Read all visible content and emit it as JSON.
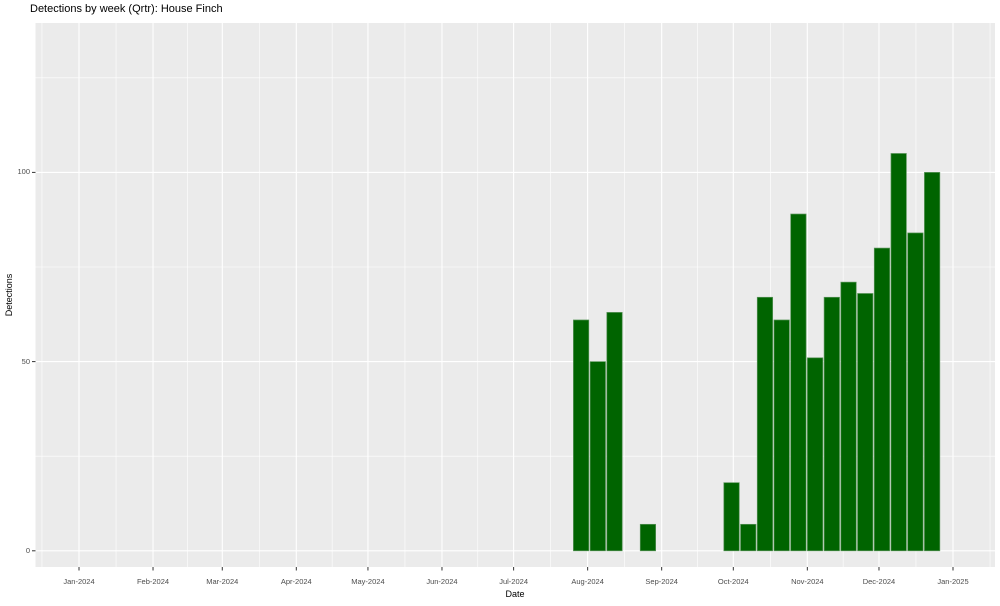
{
  "chart": {
    "title": "Detections by week (Qrtr): House Finch",
    "xlabel": "Date",
    "ylabel": "Detections"
  },
  "chart_data": {
    "type": "bar",
    "title": "Detections by week (Qrtr): House Finch",
    "xlabel": "Date",
    "ylabel": "Detections",
    "bin": "week",
    "x_week_start": [
      "2024-07-28",
      "2024-08-04",
      "2024-08-11",
      "2024-08-25",
      "2024-09-29",
      "2024-10-06",
      "2024-10-13",
      "2024-10-20",
      "2024-10-27",
      "2024-11-03",
      "2024-11-10",
      "2024-11-17",
      "2024-11-24",
      "2024-12-01",
      "2024-12-08",
      "2024-12-15",
      "2024-12-22"
    ],
    "values": [
      61,
      50,
      63,
      7,
      18,
      7,
      67,
      61,
      89,
      51,
      67,
      71,
      68,
      80,
      105,
      84,
      100
    ],
    "x_tick_labels": [
      "Jan-2024",
      "Feb-2024",
      "Mar-2024",
      "Apr-2024",
      "May-2024",
      "Jun-2024",
      "Jul-2024",
      "Aug-2024",
      "Sep-2024",
      "Oct-2024",
      "Nov-2024",
      "Dec-2024",
      "Jan-2025"
    ],
    "y_tick_labels": [
      "0",
      "50",
      "100"
    ],
    "y_ticks": [
      0,
      50,
      100
    ],
    "y_minor_ticks": [
      25,
      75,
      125
    ],
    "ylim": [
      -5,
      139
    ],
    "grid": true,
    "legend": "none",
    "colors": {
      "bar_fill": "#006400",
      "bar_edge": "#5a945a",
      "panel_bg": "#EBEBEB",
      "grid": "#FFFFFF",
      "tick_mark": "#333333",
      "tick_text": "#4D4D4D",
      "title_text": "#000000"
    }
  }
}
